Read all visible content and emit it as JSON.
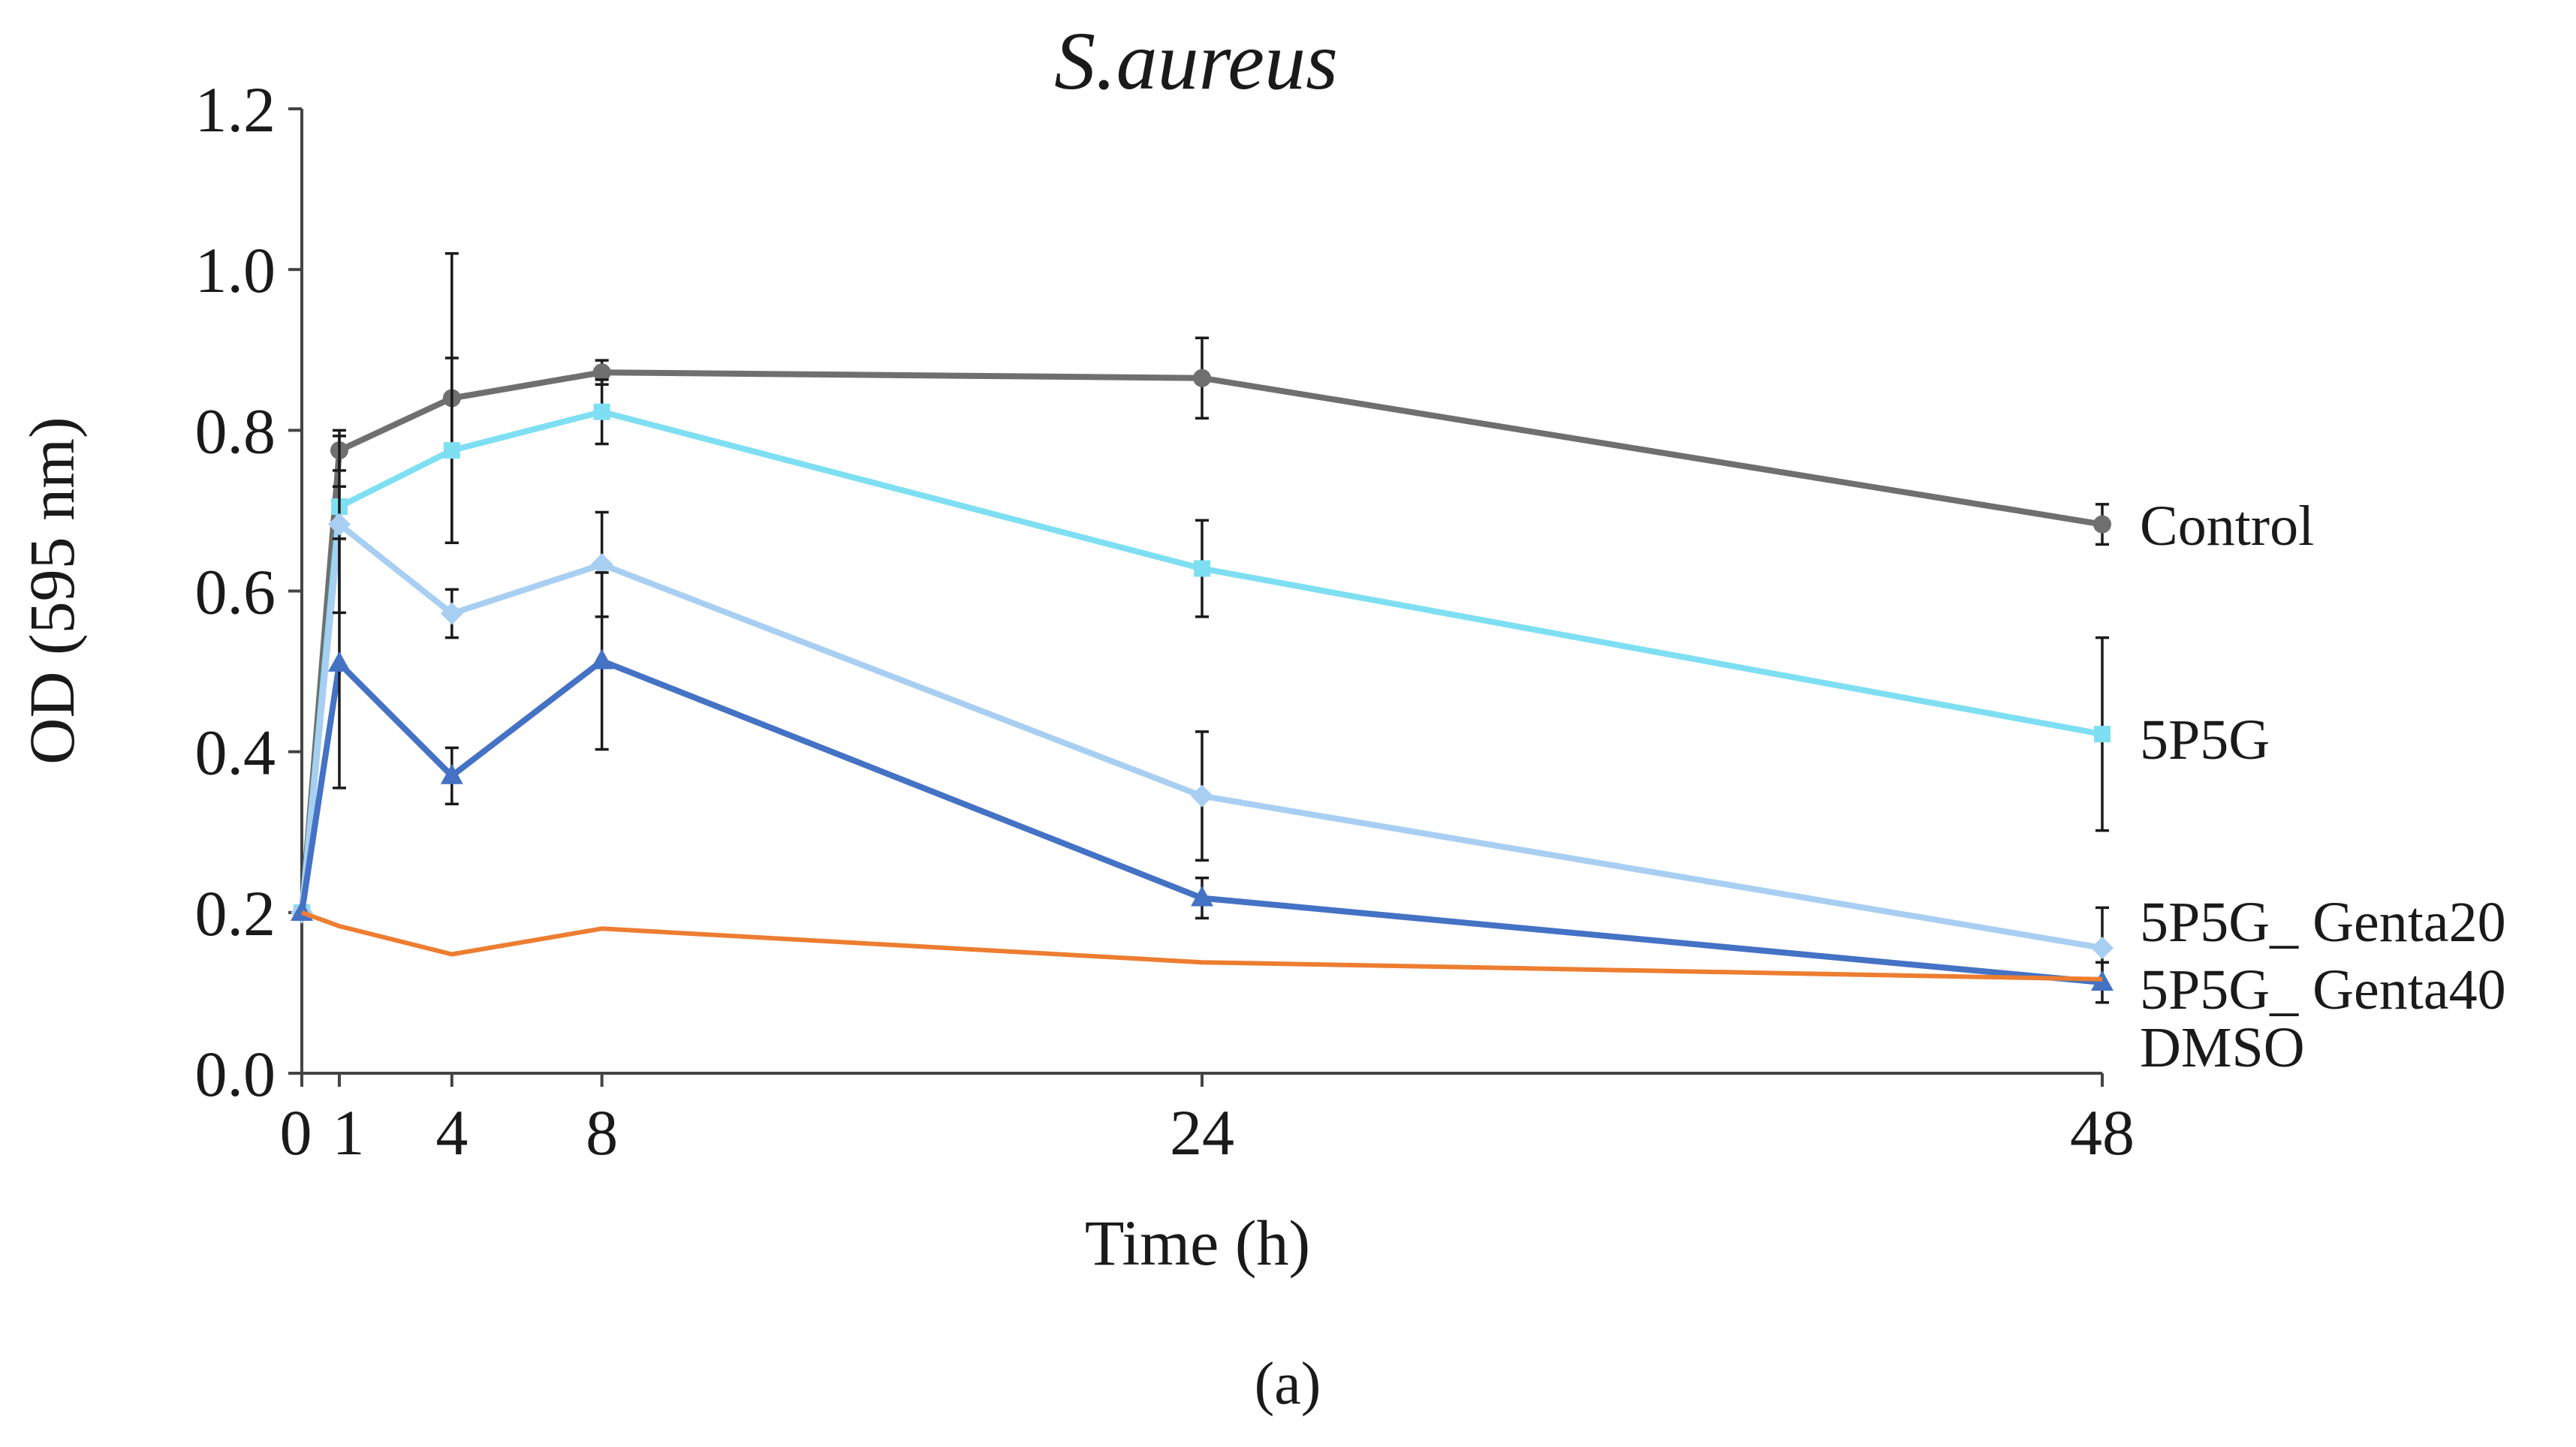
{
  "chart_data": {
    "type": "line",
    "title": "S.aureus",
    "xlabel": "Time (h)",
    "ylabel": "OD (595 nm)",
    "panel_label": "(a)",
    "x": [
      0,
      1,
      4,
      8,
      24,
      48
    ],
    "x_tick_labels": [
      "0",
      "1",
      "4",
      "8",
      "24",
      "48"
    ],
    "xlim": [
      0,
      48
    ],
    "ylim": [
      0.0,
      1.2
    ],
    "y_ticks": [
      0.0,
      0.2,
      0.4,
      0.6,
      0.8,
      1.0,
      1.2
    ],
    "y_tick_labels": [
      "0.0",
      "0.2",
      "0.4",
      "0.6",
      "0.8",
      "1.0",
      "1.2"
    ],
    "grid": false,
    "legend": "right, inline at line ends",
    "series": [
      {
        "name": "Control",
        "color": "#6f6f6f",
        "marker": "circle",
        "values": [
          0.2,
          0.775,
          0.84,
          0.872,
          0.865,
          0.683
        ],
        "errors": [
          0.0,
          0.025,
          0.18,
          0.015,
          0.05,
          0.025
        ]
      },
      {
        "name": "5P5G",
        "color": "#7fdff2",
        "marker": "square",
        "values": [
          0.2,
          0.705,
          0.775,
          0.823,
          0.628,
          0.422
        ],
        "errors": [
          0.0,
          0.025,
          0.115,
          0.04,
          0.06,
          0.12
        ]
      },
      {
        "name": "5P5G_ Genta20",
        "color": "#a8cff2",
        "marker": "diamond",
        "values": [
          0.2,
          0.683,
          0.572,
          0.633,
          0.345,
          0.156
        ],
        "errors": [
          0.0,
          0.11,
          0.03,
          0.065,
          0.08,
          0.05
        ]
      },
      {
        "name": "5P5G_ Genta40",
        "color": "#4472c4",
        "marker": "triangle",
        "values": [
          0.2,
          0.51,
          0.37,
          0.513,
          0.218,
          0.113
        ],
        "errors": [
          0.0,
          0.155,
          0.035,
          0.11,
          0.025,
          0.025
        ]
      },
      {
        "name": "DMSO",
        "color": "#ed7d31",
        "marker": "none",
        "values": [
          0.2,
          0.183,
          0.148,
          0.18,
          0.138,
          0.117
        ],
        "errors": [
          0,
          0,
          0,
          0,
          0,
          0
        ]
      }
    ]
  }
}
